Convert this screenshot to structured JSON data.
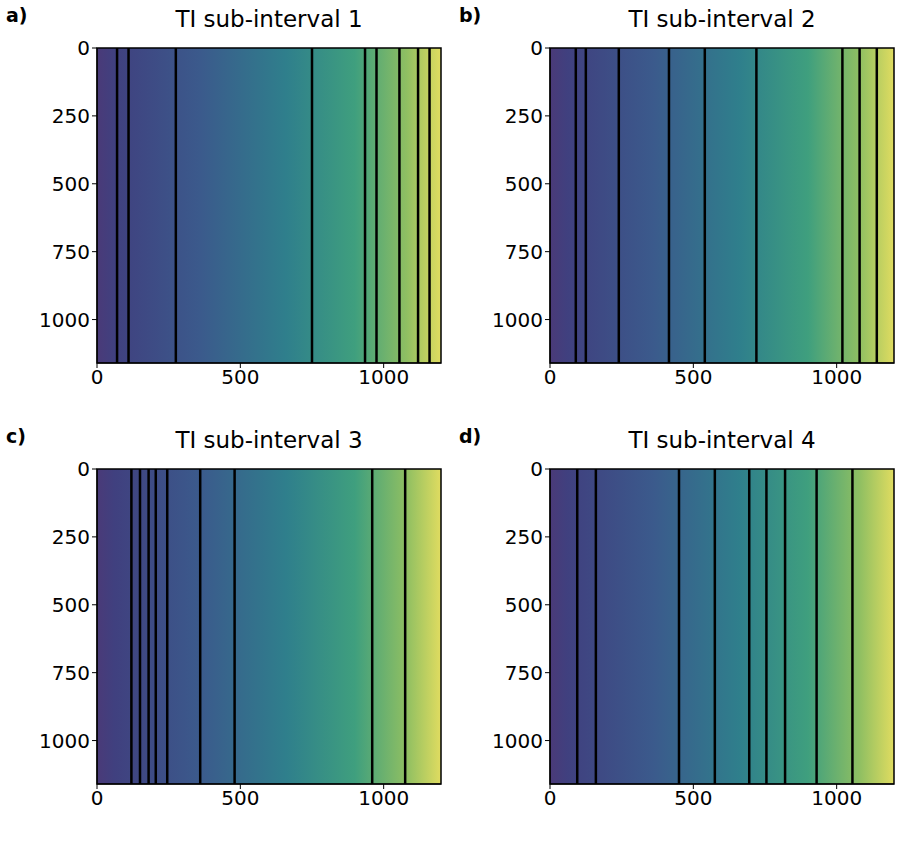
{
  "chart_data": [
    {
      "type": "vlines",
      "panel": "a)",
      "title": "TI sub-interval 1",
      "x": [
        70,
        110,
        275,
        750,
        935,
        975,
        1055,
        1120,
        1160
      ],
      "color": "#000000",
      "xlim": [
        0,
        1200
      ],
      "xticks": [
        0,
        500,
        1000
      ],
      "ylim": [
        0,
        1160
      ],
      "yticks": [
        0,
        250,
        500,
        750,
        1000
      ]
    },
    {
      "type": "vlines",
      "panel": "b)",
      "title": "TI sub-interval 2",
      "x": [
        90,
        125,
        240,
        415,
        540,
        720,
        1020,
        1080,
        1140
      ],
      "color": "#000000",
      "xlim": [
        0,
        1200
      ],
      "xticks": [
        0,
        500,
        1000
      ],
      "ylim": [
        0,
        1160
      ],
      "yticks": [
        0,
        250,
        500,
        750,
        1000
      ]
    },
    {
      "type": "vlines",
      "panel": "c)",
      "title": "TI sub-interval 3",
      "x": [
        120,
        150,
        180,
        205,
        245,
        360,
        480,
        960,
        1075
      ],
      "color": "#000000",
      "xlim": [
        0,
        1200
      ],
      "xticks": [
        0,
        500,
        1000
      ],
      "ylim": [
        0,
        1160
      ],
      "yticks": [
        0,
        250,
        500,
        750,
        1000
      ]
    },
    {
      "type": "vlines",
      "panel": "d)",
      "title": "TI sub-interval 4",
      "x": [
        95,
        160,
        450,
        575,
        695,
        755,
        820,
        930,
        1055
      ],
      "color": "#000000",
      "xlim": [
        0,
        1200
      ],
      "xticks": [
        0,
        500,
        1000
      ],
      "ylim": [
        0,
        1160
      ],
      "yticks": [
        0,
        250,
        500,
        750,
        1000
      ]
    }
  ]
}
